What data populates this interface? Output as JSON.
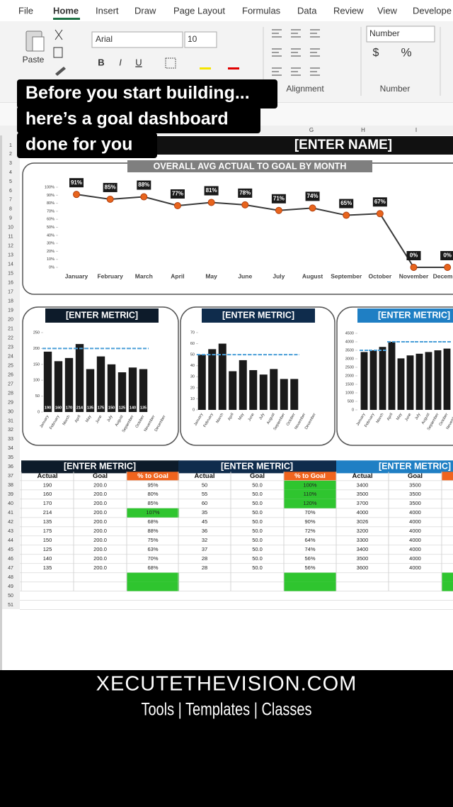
{
  "ribbon": {
    "tabs": [
      "File",
      "Home",
      "Insert",
      "Draw",
      "Page Layout",
      "Formulas",
      "Data",
      "Review",
      "View",
      "Develope"
    ],
    "paste": "Paste",
    "font": "Arial",
    "font_size": "10",
    "bold": "B",
    "italic": "I",
    "underline": "U",
    "alignment": "Alignment",
    "number_format": "Number",
    "currency": "$",
    "percent": "%",
    "number_group": "Number"
  },
  "caption": [
    "Before you start building...",
    "here’s a goal dashboard",
    "done for you"
  ],
  "sheet": {
    "columns": [
      "G",
      "H",
      "I"
    ],
    "rows": [
      1,
      2,
      3,
      4,
      5,
      6,
      7,
      8,
      9,
      10,
      11,
      12,
      13,
      14,
      15,
      16,
      17,
      18,
      19,
      20,
      21,
      22,
      23,
      24,
      25,
      26,
      27,
      28,
      29,
      30,
      31,
      32,
      33,
      34,
      35,
      36,
      37,
      38,
      39,
      40,
      41,
      42,
      43,
      44,
      45,
      46,
      47,
      48,
      49,
      50,
      51
    ]
  },
  "dashboard_title": "[ENTER NAME]",
  "line_chart": {
    "type": "line",
    "title": "OVERALL AVG ACTUAL TO GOAL BY MONTH",
    "categories": [
      "January",
      "February",
      "March",
      "April",
      "May",
      "June",
      "July",
      "August",
      "September",
      "October",
      "November",
      "December"
    ],
    "values": [
      91,
      85,
      88,
      77,
      81,
      78,
      71,
      74,
      65,
      67,
      0,
      0
    ],
    "value_labels": [
      "91%",
      "85%",
      "88%",
      "77%",
      "81%",
      "78%",
      "71%",
      "74%",
      "65%",
      "67%",
      "0%",
      "0%"
    ],
    "color": "#e8641c",
    "ylim": [
      0,
      100
    ],
    "yticks": [
      {
        "value": 0,
        "label": "0%"
      },
      {
        "value": 10,
        "label": "10%"
      },
      {
        "value": 20,
        "label": "20%"
      },
      {
        "value": 30,
        "label": "30%"
      },
      {
        "value": 40,
        "label": "40%"
      },
      {
        "value": 50,
        "label": "50%"
      },
      {
        "value": 60,
        "label": "60%"
      },
      {
        "value": 70,
        "label": "70%"
      },
      {
        "value": 80,
        "label": "80%"
      },
      {
        "value": 90,
        "label": "90%"
      },
      {
        "value": 100,
        "label": "100%"
      }
    ]
  },
  "bar_charts": [
    {
      "type": "bar",
      "title": "[ENTER METRIC]",
      "title_color": "#0d1b2a",
      "categories": [
        "January",
        "February",
        "March",
        "April",
        "May",
        "June",
        "July",
        "August",
        "September",
        "October",
        "November",
        "December"
      ],
      "values": [
        190,
        160,
        170,
        214,
        135,
        175,
        150,
        125,
        140,
        135,
        null,
        null
      ],
      "goal_values": [
        200,
        200,
        200,
        200,
        200,
        200,
        200,
        200,
        200,
        200,
        null,
        null
      ],
      "data_labels": true,
      "color": "#1a1a1a",
      "goal_color": "#4a9fd8",
      "ylim": [
        0,
        250
      ],
      "yticks": [
        0,
        50,
        100,
        150,
        200,
        250
      ]
    },
    {
      "type": "bar",
      "title": "[ENTER METRIC]",
      "title_color": "#0f2c4c",
      "categories": [
        "January",
        "February",
        "March",
        "April",
        "May",
        "June",
        "July",
        "August",
        "September",
        "October",
        "November",
        "December"
      ],
      "values": [
        50,
        55,
        60,
        35,
        45,
        36,
        32,
        37,
        28,
        28,
        null,
        null
      ],
      "goal_values": [
        50,
        50,
        50,
        50,
        50,
        50,
        50,
        50,
        50,
        50,
        null,
        null
      ],
      "data_labels": false,
      "color": "#1a1a1a",
      "goal_color": "#4a9fd8",
      "ylim": [
        0,
        70
      ],
      "yticks": [
        0,
        10,
        20,
        30,
        40,
        50,
        60,
        70
      ]
    },
    {
      "type": "bar",
      "title": "[ENTER METRIC]",
      "title_color": "#1f7fc4",
      "categories": [
        "January",
        "February",
        "March",
        "April",
        "May",
        "June",
        "July",
        "August",
        "September",
        "October",
        "November",
        "December"
      ],
      "values": [
        3400,
        3500,
        3700,
        4000,
        3026,
        3200,
        3300,
        3400,
        3500,
        3600,
        null,
        null
      ],
      "goal_values": [
        3500,
        3500,
        3500,
        4000,
        4000,
        4000,
        4000,
        4000,
        4000,
        4000,
        null,
        null
      ],
      "data_labels": false,
      "color": "#1a1a1a",
      "goal_color": "#4a9fd8",
      "ylim": [
        0,
        4500
      ],
      "yticks": [
        0,
        500,
        1000,
        1500,
        2000,
        2500,
        3000,
        3500,
        4000,
        4500
      ]
    }
  ],
  "tables": [
    {
      "title": "[ENTER METRIC]",
      "header": [
        "Actual",
        "Goal",
        "% to Goal"
      ],
      "rows": [
        [
          "190",
          "200.0",
          "95%"
        ],
        [
          "160",
          "200.0",
          "80%"
        ],
        [
          "170",
          "200.0",
          "85%"
        ],
        [
          "214",
          "200.0",
          "107%"
        ],
        [
          "135",
          "200.0",
          "68%"
        ],
        [
          "175",
          "200.0",
          "88%"
        ],
        [
          "150",
          "200.0",
          "75%"
        ],
        [
          "125",
          "200.0",
          "63%"
        ],
        [
          "140",
          "200.0",
          "70%"
        ],
        [
          "135",
          "200.0",
          "68%"
        ]
      ]
    },
    {
      "title": "[ENTER METRIC]",
      "header": [
        "Actual",
        "Goal",
        "% to Goal"
      ],
      "rows": [
        [
          "50",
          "50.0",
          "100%"
        ],
        [
          "55",
          "50.0",
          "110%"
        ],
        [
          "60",
          "50.0",
          "120%"
        ],
        [
          "35",
          "50.0",
          "70%"
        ],
        [
          "45",
          "50.0",
          "90%"
        ],
        [
          "36",
          "50.0",
          "72%"
        ],
        [
          "32",
          "50.0",
          "64%"
        ],
        [
          "37",
          "50.0",
          "74%"
        ],
        [
          "28",
          "50.0",
          "56%"
        ],
        [
          "28",
          "50.0",
          "56%"
        ]
      ]
    },
    {
      "title": "[ENTER METRIC]",
      "header": [
        "Actual",
        "Goal"
      ],
      "rows": [
        [
          "3400",
          "3500"
        ],
        [
          "3500",
          "3500"
        ],
        [
          "3700",
          "3500"
        ],
        [
          "4000",
          "4000"
        ],
        [
          "3026",
          "4000"
        ],
        [
          "3200",
          "4000"
        ],
        [
          "3300",
          "4000"
        ],
        [
          "3400",
          "4000"
        ],
        [
          "3500",
          "4000"
        ],
        [
          "3600",
          "4000"
        ]
      ]
    }
  ],
  "footer": {
    "site": "XECUTETHEVISION.COM",
    "tagline": "Tools | Templates | Classes"
  }
}
